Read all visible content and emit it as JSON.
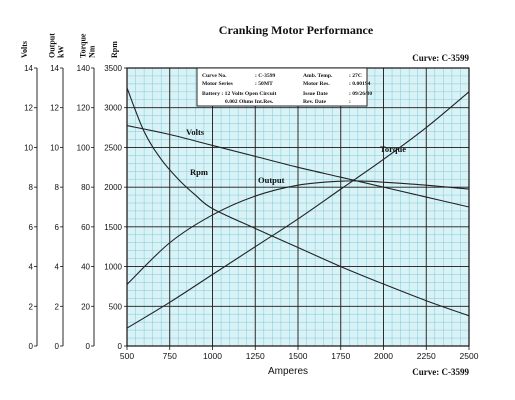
{
  "chart_data": {
    "type": "line",
    "title": "Cranking Motor Performance",
    "curve_label": "Curve: C-3599",
    "xlabel": "Amperes",
    "x_ticks": [
      500,
      750,
      1000,
      1250,
      1500,
      1750,
      2000,
      2250,
      2500
    ],
    "xlim": [
      500,
      2500
    ],
    "grid": true,
    "axes": [
      {
        "label": "Rpm",
        "ticks": [
          0,
          500,
          1000,
          1500,
          2000,
          2500,
          3000,
          3500
        ],
        "range": [
          0,
          3500
        ]
      },
      {
        "label": "Torque Nm",
        "ticks": [
          0,
          20,
          40,
          60,
          80,
          100,
          120,
          140
        ],
        "range": [
          0,
          140
        ]
      },
      {
        "label": "Output kW",
        "ticks": [
          0,
          2,
          4,
          6,
          8,
          10,
          12,
          14
        ],
        "range": [
          0,
          14
        ]
      },
      {
        "label": "Volts",
        "ticks": [
          0,
          2,
          4,
          6,
          8,
          10,
          12,
          14
        ],
        "range": [
          0,
          14
        ]
      }
    ],
    "series": [
      {
        "name": "Rpm",
        "axis": "Rpm",
        "x": [
          500,
          600,
          700,
          800,
          900,
          1000,
          1250,
          1500,
          1750,
          2000,
          2250,
          2500
        ],
        "y": [
          3250,
          2700,
          2350,
          2100,
          1900,
          1730,
          1480,
          1240,
          1000,
          780,
          570,
          380
        ]
      },
      {
        "name": "Volts",
        "axis": "Volts",
        "x": [
          500,
          750,
          1000,
          1250,
          1500,
          1750,
          2000,
          2250,
          2500
        ],
        "y": [
          11.1,
          10.65,
          10.1,
          9.55,
          9.0,
          8.5,
          8.0,
          7.5,
          7.0
        ]
      },
      {
        "name": "Output",
        "axis": "Output kW",
        "x": [
          500,
          750,
          1000,
          1250,
          1500,
          1750,
          1900,
          2000,
          2250,
          2500
        ],
        "y": [
          3.1,
          5.2,
          6.6,
          7.55,
          8.1,
          8.3,
          8.3,
          8.25,
          8.1,
          7.9
        ]
      },
      {
        "name": "Torque",
        "axis": "Torque Nm",
        "x": [
          500,
          750,
          1000,
          1250,
          1500,
          1750,
          2000,
          2250,
          2500
        ],
        "y": [
          9,
          22,
          36,
          50,
          64,
          79,
          94,
          110,
          128
        ]
      }
    ],
    "info_box": {
      "rows": [
        [
          "Curve No.",
          ": C-3599",
          "Amb. Temp.",
          ": 27C"
        ],
        [
          "Motor Series",
          ": 50MT",
          "Motor Res.",
          ": 0.00194"
        ],
        [
          "Battery : 12 Volts Open Circuit",
          "",
          "Issue Date",
          ": 09/26/80"
        ],
        [
          "0.002 Ohms Int.Res.",
          "",
          "Rev. Date",
          ":"
        ]
      ]
    }
  }
}
